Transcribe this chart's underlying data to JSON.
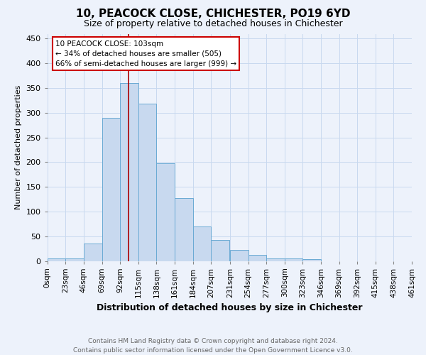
{
  "title": "10, PEACOCK CLOSE, CHICHESTER, PO19 6YD",
  "subtitle": "Size of property relative to detached houses in Chichester",
  "xlabel": "Distribution of detached houses by size in Chichester",
  "ylabel": "Number of detached properties",
  "bar_values": [
    5,
    5,
    35,
    290,
    360,
    318,
    197,
    127,
    70,
    42,
    22,
    12,
    5,
    5,
    4,
    0,
    0,
    0,
    0,
    0
  ],
  "bin_edges": [
    0,
    23,
    46,
    69,
    92,
    115,
    138,
    161,
    184,
    207,
    231,
    254,
    277,
    300,
    323,
    346,
    369,
    392,
    415,
    438,
    461
  ],
  "tick_labels": [
    "0sqm",
    "23sqm",
    "46sqm",
    "69sqm",
    "92sqm",
    "115sqm",
    "138sqm",
    "161sqm",
    "184sqm",
    "207sqm",
    "231sqm",
    "254sqm",
    "277sqm",
    "300sqm",
    "323sqm",
    "346sqm",
    "369sqm",
    "392sqm",
    "415sqm",
    "438sqm",
    "461sqm"
  ],
  "bar_color": "#c8d9ef",
  "bar_edge_color": "#6aaad4",
  "grid_color": "#c8d9ef",
  "property_value": 103,
  "vline_color": "#aa0000",
  "annotation_box_edge": "#cc0000",
  "annotation_line1": "10 PEACOCK CLOSE: 103sqm",
  "annotation_line2": "← 34% of detached houses are smaller (505)",
  "annotation_line3": "66% of semi-detached houses are larger (999) →",
  "ylim": [
    0,
    460
  ],
  "yticks": [
    0,
    50,
    100,
    150,
    200,
    250,
    300,
    350,
    400,
    450
  ],
  "footer_line1": "Contains HM Land Registry data © Crown copyright and database right 2024.",
  "footer_line2": "Contains public sector information licensed under the Open Government Licence v3.0.",
  "background_color": "#edf2fb",
  "title_fontsize": 11,
  "subtitle_fontsize": 9,
  "xlabel_fontsize": 9,
  "ylabel_fontsize": 8,
  "tick_fontsize": 7.5,
  "footer_fontsize": 6.5
}
